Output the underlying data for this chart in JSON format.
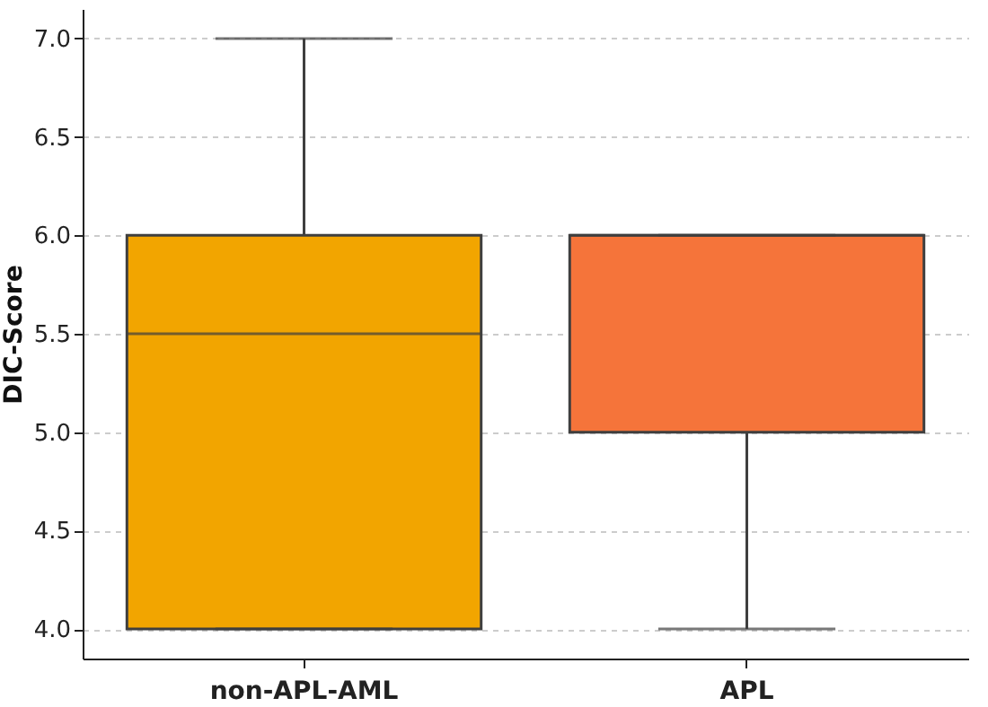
{
  "chart_data": {
    "type": "box",
    "ylabel": "DIC-Score",
    "categories": [
      "non-APL-AML",
      "APL"
    ],
    "colors": [
      "#f2a500",
      "#f5743a"
    ],
    "boxes": [
      {
        "low": 4.0,
        "q1": 4.0,
        "median": 5.5,
        "q3": 6.0,
        "high": 7.0
      },
      {
        "low": 4.0,
        "q1": 5.0,
        "median": 6.0,
        "q3": 6.0,
        "high": 6.0
      }
    ],
    "ylim": [
      3.85,
      7.15
    ],
    "yticks": [
      {
        "value": 4,
        "label": "4.0"
      },
      {
        "value": 4.5,
        "label": "4.5"
      },
      {
        "value": 5,
        "label": "5.0"
      },
      {
        "value": 5.5,
        "label": "5.5"
      },
      {
        "value": 6,
        "label": "6.0"
      },
      {
        "value": 6.5,
        "label": "6.5"
      },
      {
        "value": 7,
        "label": "7.0"
      }
    ],
    "grid": "y"
  }
}
